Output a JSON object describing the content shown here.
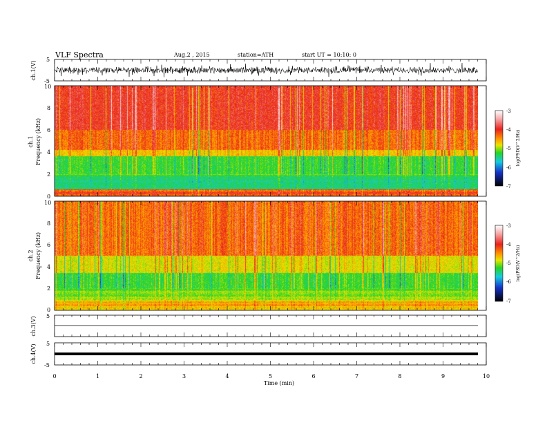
{
  "header": {
    "title": "VLF  Spectra",
    "date": "Aug.2  , 2015",
    "station": "station=ATH",
    "start": "start  UT =   10:10: 0"
  },
  "chart_data": [
    {
      "type": "line",
      "panel": "ch1-waveform",
      "ylabel": "ch.1(V)",
      "ylim": [
        -5,
        5
      ],
      "yticks": [
        "5",
        "-5"
      ],
      "x": [
        0,
        1,
        2,
        3,
        4,
        5,
        6,
        7,
        8,
        9,
        9.8
      ],
      "values": [
        0,
        0,
        0,
        0,
        0,
        0,
        0,
        0,
        0,
        0,
        0
      ],
      "note_band": [
        -1.8,
        1.8
      ]
    },
    {
      "type": "heatmap",
      "panel": "ch1-spectrogram",
      "ylabel_line1": "ch.1",
      "ylabel_line2": "Frequency  (kHz)",
      "ylim": [
        0,
        10
      ],
      "yticks": [
        "0",
        "2",
        "4",
        "6",
        "8",
        "10"
      ],
      "colorbar": {
        "label": "log(PSD(V^2/Hz)",
        "ticks": [
          "-3",
          "-4",
          "-5",
          "-6",
          "-7"
        ],
        "range": [
          -7,
          -3
        ]
      },
      "bands": [
        {
          "from": 6.0,
          "to": 10.0,
          "level": -4.0
        },
        {
          "from": 4.2,
          "to": 6.0,
          "level": -4.3
        },
        {
          "from": 3.6,
          "to": 4.2,
          "level": -4.7
        },
        {
          "from": 1.8,
          "to": 3.6,
          "level": -5.4
        },
        {
          "from": 0.6,
          "to": 1.8,
          "level": -5.7
        },
        {
          "from": 0.0,
          "to": 0.6,
          "level": -4.2
        }
      ]
    },
    {
      "type": "heatmap",
      "panel": "ch2-spectrogram",
      "ylabel_line1": "ch.2",
      "ylabel_line2": "Frequency  (kHz)",
      "ylim": [
        0,
        10
      ],
      "yticks": [
        "0",
        "2",
        "4",
        "6",
        "8",
        "10"
      ],
      "colorbar": {
        "label": "log(PSD(V^2/Hz)",
        "ticks": [
          "-3",
          "-4",
          "-5",
          "-6",
          "-7"
        ],
        "range": [
          -7,
          -3
        ]
      },
      "bands": [
        {
          "from": 5.0,
          "to": 10.0,
          "level": -4.3
        },
        {
          "from": 3.4,
          "to": 5.0,
          "level": -4.9
        },
        {
          "from": 1.8,
          "to": 3.4,
          "level": -5.4
        },
        {
          "from": 0.8,
          "to": 1.8,
          "level": -5.1
        },
        {
          "from": 0.0,
          "to": 0.8,
          "level": -4.6
        }
      ]
    },
    {
      "type": "line",
      "panel": "ch3-waveform",
      "ylabel": "ch.3(V)",
      "ylim": [
        -5,
        5
      ],
      "yticks": [
        "5",
        "-5"
      ],
      "x": [
        0,
        9.8
      ],
      "values": [
        0,
        0
      ]
    },
    {
      "type": "line",
      "panel": "ch4-waveform",
      "ylabel": "ch.4(V)",
      "ylim": [
        -5,
        5
      ],
      "yticks": [
        "5",
        "-5"
      ],
      "x": [
        0,
        9.8
      ],
      "values": [
        0,
        0
      ]
    }
  ],
  "xaxis": {
    "label": "Time  (min)",
    "ticks": [
      "0",
      "1",
      "2",
      "3",
      "4",
      "5",
      "6",
      "7",
      "8",
      "9",
      "10"
    ],
    "xlim": [
      0,
      10
    ],
    "data_end": 9.8
  },
  "colors": {
    "red": "#e8231d",
    "yellow": "#e6e500",
    "green": "#26d426",
    "cyan": "#16c9e0",
    "blue": "#1633c8",
    "pink": "#ffd0d0"
  }
}
